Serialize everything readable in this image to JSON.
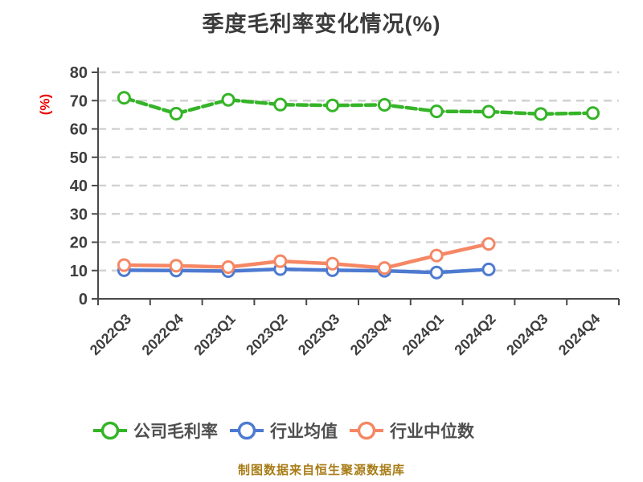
{
  "title": "季度毛利率变化情况(%)",
  "caption": "制图数据来自恒生聚源数据库",
  "colors": {
    "background": "#ffffff",
    "title_text": "#3c3c3c",
    "axis_line": "#4a4a4a",
    "tick_label": "#3e3e3e",
    "gridline": "#d2d2d2",
    "y_unit_label": "#ee0000",
    "legend_text": "#4f4f4f",
    "caption_text": "#a87c16"
  },
  "chart_data": {
    "type": "line",
    "title": "季度毛利率变化情况(%)",
    "xlabel": "",
    "ylabel": "(%)",
    "ylim": [
      0,
      80
    ],
    "y_ticks": [
      0,
      10,
      20,
      30,
      40,
      50,
      60,
      70,
      80
    ],
    "grid": true,
    "grid_style": "dashed",
    "x_tick_rotation": 45,
    "legend_position": "bottom",
    "categories": [
      "2022Q3",
      "2022Q4",
      "2023Q1",
      "2023Q2",
      "2023Q3",
      "2023Q4",
      "2024Q1",
      "2024Q2",
      "2024Q3",
      "2024Q4"
    ],
    "series": [
      {
        "name": "公司毛利率",
        "color": "#35b428",
        "line_style": "dashed",
        "marker": "circle-white-fill",
        "values": [
          71.0,
          65.4,
          70.3,
          68.6,
          68.3,
          68.5,
          66.2,
          66.1,
          65.3,
          65.6
        ]
      },
      {
        "name": "行业均值",
        "color": "#4d7ad1",
        "line_style": "solid",
        "marker": "circle-white-fill",
        "values": [
          10.1,
          10.0,
          9.8,
          10.5,
          10.1,
          9.9,
          9.3,
          10.4
        ]
      },
      {
        "name": "行业中位数",
        "color": "#f58764",
        "line_style": "solid",
        "marker": "circle-white-fill",
        "values": [
          11.9,
          11.7,
          11.2,
          13.3,
          12.4,
          10.9,
          15.3,
          19.4
        ]
      }
    ]
  }
}
